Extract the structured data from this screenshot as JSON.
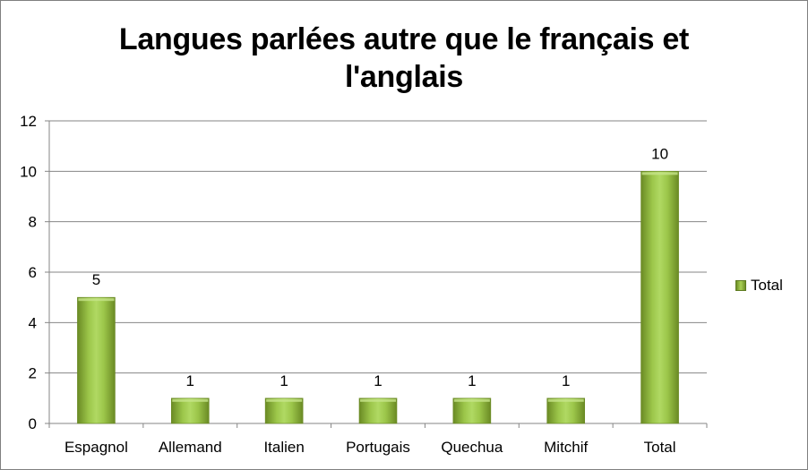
{
  "chart_data": {
    "type": "bar",
    "title": "Langues parlées autre que le français et l'anglais",
    "categories": [
      "Espagnol",
      "Allemand",
      "Italien",
      "Portugais",
      "Quechua",
      "Mitchif",
      "Total"
    ],
    "series": [
      {
        "name": "Total",
        "values": [
          5,
          1,
          1,
          1,
          1,
          1,
          10
        ]
      }
    ],
    "data_labels": [
      "5",
      "1",
      "1",
      "1",
      "1",
      "1",
      "10"
    ],
    "xlabel": "",
    "ylabel": "",
    "ylim": [
      0,
      12
    ],
    "yticks": [
      0,
      2,
      4,
      6,
      8,
      10,
      12
    ],
    "grid": true,
    "legend_position": "right",
    "bar_color": "#9bbb59"
  }
}
